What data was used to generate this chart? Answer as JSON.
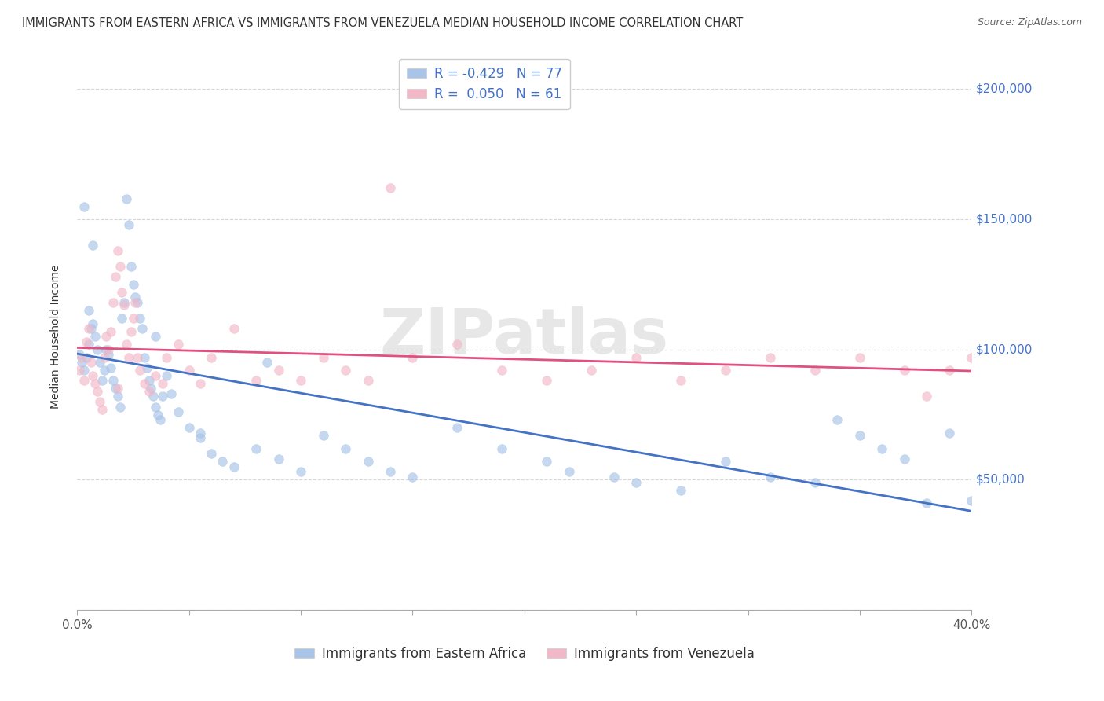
{
  "title": "IMMIGRANTS FROM EASTERN AFRICA VS IMMIGRANTS FROM VENEZUELA MEDIAN HOUSEHOLD INCOME CORRELATION CHART",
  "source": "Source: ZipAtlas.com",
  "ylabel": "Median Household Income",
  "series": [
    {
      "label": "Immigrants from Eastern Africa",
      "color": "#a8c4e8",
      "R": -0.429,
      "N": 77,
      "trend_color": "#4472c4",
      "x": [
        0.1,
        0.2,
        0.3,
        0.4,
        0.5,
        0.6,
        0.7,
        0.8,
        0.9,
        1.0,
        1.1,
        1.2,
        1.3,
        1.4,
        1.5,
        1.6,
        1.7,
        1.8,
        1.9,
        2.0,
        2.1,
        2.2,
        2.3,
        2.4,
        2.5,
        2.6,
        2.7,
        2.8,
        2.9,
        3.0,
        3.1,
        3.2,
        3.3,
        3.4,
        3.5,
        3.6,
        3.7,
        3.8,
        4.0,
        4.2,
        4.5,
        5.0,
        5.5,
        6.0,
        6.5,
        7.0,
        8.0,
        9.0,
        10.0,
        11.0,
        12.0,
        13.0,
        14.0,
        15.0,
        17.0,
        19.0,
        21.0,
        22.0,
        24.0,
        25.0,
        27.0,
        29.0,
        31.0,
        33.0,
        34.0,
        35.0,
        36.0,
        37.0,
        38.0,
        39.0,
        40.0,
        5.5,
        8.5,
        3.5,
        0.5,
        0.3,
        0.7
      ],
      "y": [
        98000,
        95000,
        92000,
        97000,
        102000,
        108000,
        110000,
        105000,
        100000,
        95000,
        88000,
        92000,
        100000,
        98000,
        93000,
        88000,
        85000,
        82000,
        78000,
        112000,
        118000,
        158000,
        148000,
        132000,
        125000,
        120000,
        118000,
        112000,
        108000,
        97000,
        93000,
        88000,
        85000,
        82000,
        78000,
        75000,
        73000,
        82000,
        90000,
        83000,
        76000,
        70000,
        66000,
        60000,
        57000,
        55000,
        62000,
        58000,
        53000,
        67000,
        62000,
        57000,
        53000,
        51000,
        70000,
        62000,
        57000,
        53000,
        51000,
        49000,
        46000,
        57000,
        51000,
        49000,
        73000,
        67000,
        62000,
        58000,
        41000,
        68000,
        42000,
        68000,
        95000,
        105000,
        115000,
        155000,
        140000
      ]
    },
    {
      "label": "Immigrants from Venezuela",
      "color": "#f2b8c8",
      "R": 0.05,
      "N": 61,
      "trend_color": "#e05080",
      "x": [
        0.1,
        0.2,
        0.3,
        0.5,
        0.6,
        0.7,
        0.8,
        0.9,
        1.0,
        1.1,
        1.2,
        1.3,
        1.4,
        1.5,
        1.6,
        1.7,
        1.8,
        1.9,
        2.0,
        2.1,
        2.2,
        2.3,
        2.4,
        2.5,
        2.6,
        2.7,
        2.8,
        3.0,
        3.2,
        3.5,
        3.8,
        4.0,
        4.5,
        5.0,
        5.5,
        6.0,
        7.0,
        8.0,
        9.0,
        10.0,
        11.0,
        12.0,
        13.0,
        14.0,
        15.0,
        17.0,
        19.0,
        21.0,
        23.0,
        25.0,
        27.0,
        29.0,
        31.0,
        33.0,
        35.0,
        37.0,
        38.0,
        39.0,
        40.0,
        0.4,
        1.8
      ],
      "y": [
        92000,
        97000,
        88000,
        108000,
        95000,
        90000,
        87000,
        84000,
        80000,
        77000,
        97000,
        105000,
        100000,
        107000,
        118000,
        128000,
        138000,
        132000,
        122000,
        117000,
        102000,
        97000,
        107000,
        112000,
        118000,
        97000,
        92000,
        87000,
        84000,
        90000,
        87000,
        97000,
        102000,
        92000,
        87000,
        97000,
        108000,
        88000,
        92000,
        88000,
        97000,
        92000,
        88000,
        162000,
        97000,
        102000,
        92000,
        88000,
        92000,
        97000,
        88000,
        92000,
        97000,
        92000,
        97000,
        92000,
        82000,
        92000,
        97000,
        103000,
        85000
      ]
    }
  ],
  "watermark_text": "ZIPatlas",
  "xmin": 0.0,
  "xmax": 40.0,
  "ymin": 0,
  "ymax": 210000,
  "yticks": [
    0,
    50000,
    100000,
    150000,
    200000
  ],
  "ytick_labels": [
    "",
    "$50,000",
    "$100,000",
    "$150,000",
    "$200,000"
  ],
  "xtick_positions": [
    0,
    5,
    10,
    15,
    20,
    25,
    30,
    35,
    40
  ],
  "background_color": "#ffffff",
  "grid_color": "#cccccc",
  "title_fontsize": 10.5,
  "source_fontsize": 9,
  "axis_label_fontsize": 10,
  "tick_fontsize": 11,
  "legend_fontsize": 12,
  "scatter_size": 70,
  "scatter_alpha": 0.65,
  "trend_linewidth": 2.0
}
